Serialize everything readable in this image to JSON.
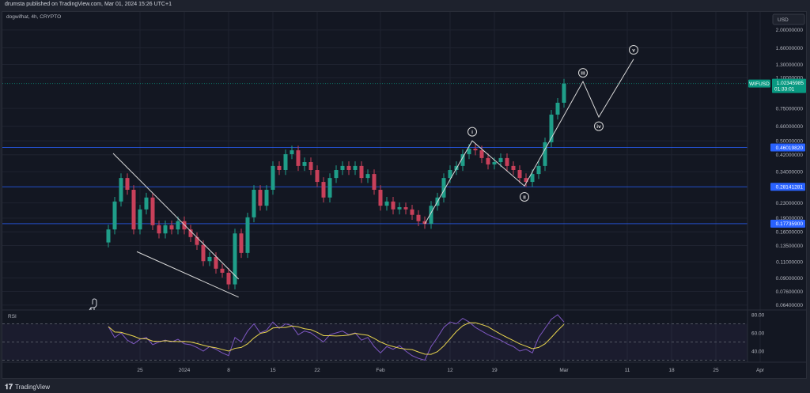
{
  "header": {
    "publisher_line": "drumsta published on TradingView.com, Mar 01, 2024 15:26 UTC+1"
  },
  "legend": {
    "symbol_line": "dogwifhat, 4h, CRYPTO"
  },
  "price_axis": {
    "currency": "USD"
  },
  "symbol_badge": {
    "symbol": "WIFUSD",
    "price": "1.02345985",
    "countdown": "01:33:01",
    "color": "#089981"
  },
  "rsi_pane": {
    "label": "RSI"
  },
  "footer": {
    "brand": "TradingView"
  },
  "colors": {
    "background": "#131722",
    "up": "#1f9e89",
    "down": "#c8405a",
    "levels": "#2962ff",
    "rsi": "#7e57c2",
    "rsi_ma": "#e8d44d",
    "annotations": "#d9d9d9"
  },
  "chart_data": {
    "type": "candlestick",
    "title": "dogwifhat, 4h, CRYPTO",
    "y_scale": "log",
    "ylim": [
      0.06,
      2.2
    ],
    "xlim": [
      "2023-12-15",
      "2024-04-08"
    ],
    "grid": true,
    "start_date": "2023-12-20",
    "closes": [
      0.165,
      0.234,
      0.314,
      0.271,
      0.165,
      0.212,
      0.246,
      0.174,
      0.157,
      0.174,
      0.165,
      0.183,
      0.165,
      0.15,
      0.136,
      0.111,
      0.117,
      0.101,
      0.096,
      0.083,
      0.157,
      0.123,
      0.192,
      0.271,
      0.222,
      0.271,
      0.365,
      0.347,
      0.423,
      0.444,
      0.365,
      0.383,
      0.347,
      0.299,
      0.246,
      0.314,
      0.347,
      0.365,
      0.347,
      0.365,
      0.314,
      0.33,
      0.271,
      0.222,
      0.234,
      0.212,
      0.218,
      0.212,
      0.198,
      0.183,
      0.177,
      0.222,
      0.246,
      0.314,
      0.347,
      0.365,
      0.423,
      0.453,
      0.444,
      0.403,
      0.372,
      0.383,
      0.403,
      0.365,
      0.347,
      0.314,
      0.299,
      0.33,
      0.365,
      0.491,
      0.694,
      0.805,
      1.023
    ],
    "y_ticks": [
      "2.00000000",
      "1.60000000",
      "1.30000000",
      "1.10000000",
      "0.75000000",
      "0.60000000",
      "0.50000000",
      "0.42000000",
      "0.34000000",
      "0.23000000",
      "0.19000000",
      "0.16000000",
      "0.13500000",
      "0.11000000",
      "0.09000000",
      "0.07600000",
      "0.06400000"
    ],
    "x_ticks": [
      {
        "label": "25",
        "date": "2023-12-25"
      },
      {
        "label": "2024",
        "date": "2024-01-01"
      },
      {
        "label": "8",
        "date": "2024-01-08"
      },
      {
        "label": "15",
        "date": "2024-01-15"
      },
      {
        "label": "22",
        "date": "2024-01-22"
      },
      {
        "label": "Feb",
        "date": "2024-02-01"
      },
      {
        "label": "12",
        "date": "2024-02-12"
      },
      {
        "label": "19",
        "date": "2024-02-19"
      },
      {
        "label": "Mar",
        "date": "2024-03-01"
      },
      {
        "label": "11",
        "date": "2024-03-11"
      },
      {
        "label": "18",
        "date": "2024-03-18"
      },
      {
        "label": "25",
        "date": "2024-03-25"
      },
      {
        "label": "Apr",
        "date": "2024-04-01"
      }
    ],
    "horizontal_levels": [
      "0.46019820",
      "0.28141281",
      "0.17735900"
    ],
    "trendlines": [
      {
        "from": {
          "date": "2023-12-20T18:00:00Z",
          "price": 0.427
        },
        "to": {
          "date": "2024-01-09T14:00:00Z",
          "price": 0.0886
        }
      },
      {
        "from": {
          "date": "2023-12-24T12:00:00Z",
          "price": 0.125
        },
        "to": {
          "date": "2024-01-09T14:00:00Z",
          "price": 0.0707
        }
      }
    ],
    "wave_path": [
      {
        "date": "2024-02-08T00:00:00Z",
        "price": 0.177
      },
      {
        "date": "2024-02-15T12:00:00Z",
        "price": 0.5
      },
      {
        "date": "2024-02-23T18:00:00Z",
        "price": 0.284
      },
      {
        "date": "2024-03-04T00:00:00Z",
        "price": 1.05
      },
      {
        "date": "2024-03-06T12:00:00Z",
        "price": 0.673
      },
      {
        "date": "2024-03-12T00:00:00Z",
        "price": 1.39
      }
    ],
    "wave_labels": [
      {
        "label": "i",
        "date": "2024-02-15T12:00:00Z",
        "price": 0.56
      },
      {
        "label": "ii",
        "date": "2024-02-23T18:00:00Z",
        "price": 0.248
      },
      {
        "label": "iii",
        "date": "2024-03-04T00:00:00Z",
        "price": 1.17
      },
      {
        "label": "iv",
        "date": "2024-03-06T12:00:00Z",
        "price": 0.6
      },
      {
        "label": "v",
        "date": "2024-03-12T00:00:00Z",
        "price": 1.56
      }
    ],
    "rsi": {
      "ylim": [
        20,
        90
      ],
      "y_ticks": [
        "80.00",
        "60.00",
        "40.00"
      ],
      "bands": [
        70,
        30
      ],
      "values": [
        67,
        55,
        60,
        52,
        48,
        53,
        55,
        47,
        50,
        52,
        50,
        53,
        48,
        47,
        44,
        40,
        45,
        42,
        38,
        35,
        55,
        50,
        62,
        70,
        60,
        63,
        72,
        65,
        70,
        68,
        58,
        62,
        60,
        55,
        50,
        58,
        60,
        62,
        58,
        60,
        52,
        55,
        45,
        38,
        45,
        42,
        46,
        40,
        35,
        32,
        30,
        45,
        55,
        66,
        72,
        70,
        76,
        72,
        66,
        62,
        58,
        55,
        52,
        48,
        45,
        40,
        42,
        38,
        55,
        65,
        75,
        80,
        72
      ]
    }
  }
}
